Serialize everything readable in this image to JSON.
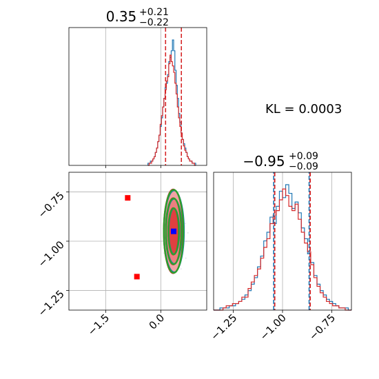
{
  "chart_data": [
    {
      "type": "histogram",
      "panel": "top-left marginal",
      "title_main": "0.35",
      "title_sup": "+0.21",
      "title_sub": "−0.22",
      "xlim": [
        -2.5,
        1.25
      ],
      "quantile_lines": [
        0.13,
        0.56
      ],
      "quantile_color": "#d62728",
      "grid": true,
      "series": [
        {
          "color": "#1f77b4",
          "style": "step",
          "bin_edges": [
            -0.35,
            0.95
          ],
          "counts": [
            1,
            1,
            2,
            2,
            3,
            4,
            6,
            8,
            11,
            14,
            18,
            22,
            27,
            31,
            36,
            38,
            42,
            48,
            50,
            53,
            58,
            53,
            44,
            37,
            31,
            24,
            20,
            15,
            12,
            10,
            8,
            6,
            4,
            3,
            2,
            2,
            1,
            1,
            1
          ]
        },
        {
          "color": "#d62728",
          "style": "step",
          "bin_edges": [
            -0.35,
            0.95
          ],
          "counts": [
            0,
            1,
            1,
            2,
            3,
            4,
            6,
            8,
            11,
            14,
            19,
            23,
            27,
            31,
            35,
            39,
            41,
            47,
            51,
            48,
            46,
            43,
            38,
            33,
            27,
            22,
            18,
            15,
            12,
            9,
            7,
            6,
            4,
            3,
            2,
            2,
            1,
            1,
            0
          ]
        }
      ]
    },
    {
      "type": "contour-scatter",
      "panel": "bottom-left joint",
      "xlim": [
        -2.5,
        1.25
      ],
      "ylim": [
        -1.35,
        -0.65
      ],
      "xticks": [
        "−1.5",
        "0.0"
      ],
      "xtick_values": [
        -1.5,
        0.0
      ],
      "yticks": [
        "−0.75",
        "−1.00",
        "−1.25"
      ],
      "ytick_values": [
        -0.75,
        -1.0,
        -1.25
      ],
      "grid": true,
      "contour_center": [
        0.35,
        -0.95
      ],
      "contour_colors": {
        "filled": "#d62728",
        "outline_red": "#d62728",
        "outline_blue": "#1f77b4",
        "outline_green": "#2ca02c"
      },
      "contour_levels": [
        {
          "sx": 0.23,
          "sy": 0.19
        },
        {
          "sx": 0.34,
          "sy": 0.27
        },
        {
          "sx": 0.43,
          "sy": 0.34
        }
      ],
      "markers": [
        {
          "x": -0.9,
          "y": -0.78,
          "color": "#ff0000",
          "shape": "square"
        },
        {
          "x": -0.65,
          "y": -1.18,
          "color": "#ff0000",
          "shape": "square"
        },
        {
          "x": 0.35,
          "y": -0.95,
          "color": "#0000ff",
          "shape": "square"
        }
      ]
    },
    {
      "type": "histogram",
      "panel": "bottom-right marginal",
      "title_main": "−0.95",
      "title_sup": "+0.09",
      "title_sub": "−0.09",
      "xlim": [
        -1.35,
        -0.65
      ],
      "xticks": [
        "−1.25",
        "−1.00",
        "−0.75"
      ],
      "xtick_values": [
        -1.25,
        -1.0,
        -0.75
      ],
      "quantile_lines_blue": [
        -1.045,
        -0.865
      ],
      "quantile_lines_red": [
        -1.04,
        -0.86
      ],
      "grid": true,
      "series": [
        {
          "color": "#1f77b4",
          "style": "step",
          "bin_edges": [
            -1.35,
            -0.65
          ],
          "counts": [
            0,
            0,
            1,
            1,
            1,
            2,
            2,
            3,
            4,
            5,
            7,
            9,
            12,
            15,
            20,
            25,
            32,
            36,
            43,
            40,
            48,
            55,
            52,
            58,
            54,
            47,
            50,
            45,
            38,
            33,
            26,
            22,
            16,
            12,
            9,
            7,
            5,
            4,
            3,
            2,
            1,
            1,
            1,
            0
          ]
        },
        {
          "color": "#d62728",
          "style": "step",
          "bin_edges": [
            -1.35,
            -0.65
          ],
          "counts": [
            0,
            0,
            0,
            1,
            2,
            2,
            3,
            3,
            4,
            6,
            6,
            10,
            13,
            16,
            19,
            24,
            29,
            33,
            40,
            44,
            46,
            51,
            56,
            53,
            48,
            46,
            49,
            42,
            36,
            31,
            27,
            21,
            15,
            11,
            8,
            6,
            4,
            3,
            2,
            2,
            1,
            1,
            0,
            0
          ]
        }
      ]
    }
  ],
  "annotation": {
    "kl_text": "KL = 0.0003"
  }
}
